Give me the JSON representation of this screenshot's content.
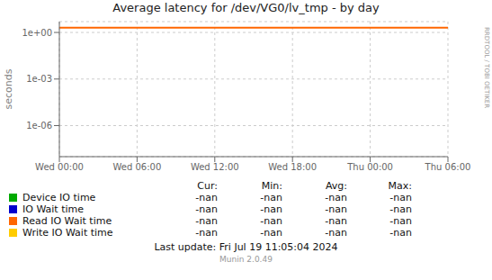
{
  "chart_data": {
    "type": "line",
    "title": "Average latency for /dev/VG0/lv_tmp - by day",
    "ylabel": "seconds",
    "log": "y",
    "grid": true,
    "x": [
      0,
      30
    ],
    "xlim": [
      0,
      30
    ],
    "xticks": [
      {
        "value": 0,
        "label": "Wed 00:00"
      },
      {
        "value": 6,
        "label": "Wed 06:00"
      },
      {
        "value": 12,
        "label": "Wed 12:00"
      },
      {
        "value": 18,
        "label": "Wed 18:00"
      },
      {
        "value": 24,
        "label": "Thu 00:00"
      },
      {
        "value": 30,
        "label": "Thu 06:00"
      }
    ],
    "ylim": [
      1e-08,
      5.0
    ],
    "yticks": [
      {
        "value": 1e-06,
        "label": "1e-06"
      },
      {
        "value": 0.001,
        "label": "1e-03"
      },
      {
        "value": 1,
        "label": "1e+00"
      }
    ],
    "series": [
      {
        "name": "Device IO time",
        "color": "#00aa00",
        "values": [
          null,
          null
        ],
        "stats": [
          "-nan",
          "-nan",
          "-nan",
          "-nan"
        ]
      },
      {
        "name": "IO Wait time",
        "color": "#0000cc",
        "values": [
          null,
          null
        ],
        "stats": [
          "-nan",
          "-nan",
          "-nan",
          "-nan"
        ]
      },
      {
        "name": "Read IO Wait time",
        "color": "#ff6600",
        "values": [
          2.0,
          2.0
        ],
        "stats": [
          "-nan",
          "-nan",
          "-nan",
          "-nan"
        ]
      },
      {
        "name": "Write IO Wait time",
        "color": "#ffcc00",
        "values": [
          null,
          null
        ],
        "stats": [
          "-nan",
          "-nan",
          "-nan",
          "-nan"
        ]
      }
    ],
    "table_headers": [
      "Cur:",
      "Min:",
      "Avg:",
      "Max:"
    ],
    "annotations": [
      "RRDTOOL / TOBI OETIKER",
      "Last update: Fri Jul 19 11:05:04 2024",
      "Munin 2.0.49"
    ]
  }
}
